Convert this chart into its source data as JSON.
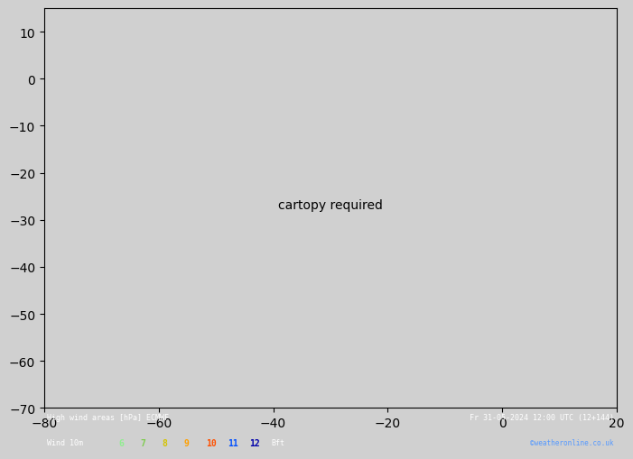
{
  "title_left": "High wind areas [hPa] ECMWF",
  "title_right": "Fr 31-05-2024 12:00 UTC (12+144)",
  "subtitle_left": "Wind 10m",
  "legend_values": [
    "6",
    "7",
    "8",
    "9",
    "10",
    "11",
    "12"
  ],
  "legend_colors_bft": [
    "#90ee90",
    "#7fcc50",
    "#d4c400",
    "#ffa000",
    "#ff5000",
    "#0050ff",
    "#0000aa"
  ],
  "bft_label": "Bft",
  "watermark": "©weatheronline.co.uk",
  "bg_color": "#d0d0d0",
  "land_color": "#aaddaa",
  "ocean_color": "#d0d0d0",
  "grid_color": "#999999",
  "isobar_color_red": "#cc0000",
  "isobar_color_blue": "#0000cc",
  "isobar_color_black": "#000000",
  "bottom_bar_color": "#000000",
  "bottom_text_color": "#ffffff",
  "lon_min": -80,
  "lon_max": 20,
  "lat_min": -70,
  "lat_max": 15
}
